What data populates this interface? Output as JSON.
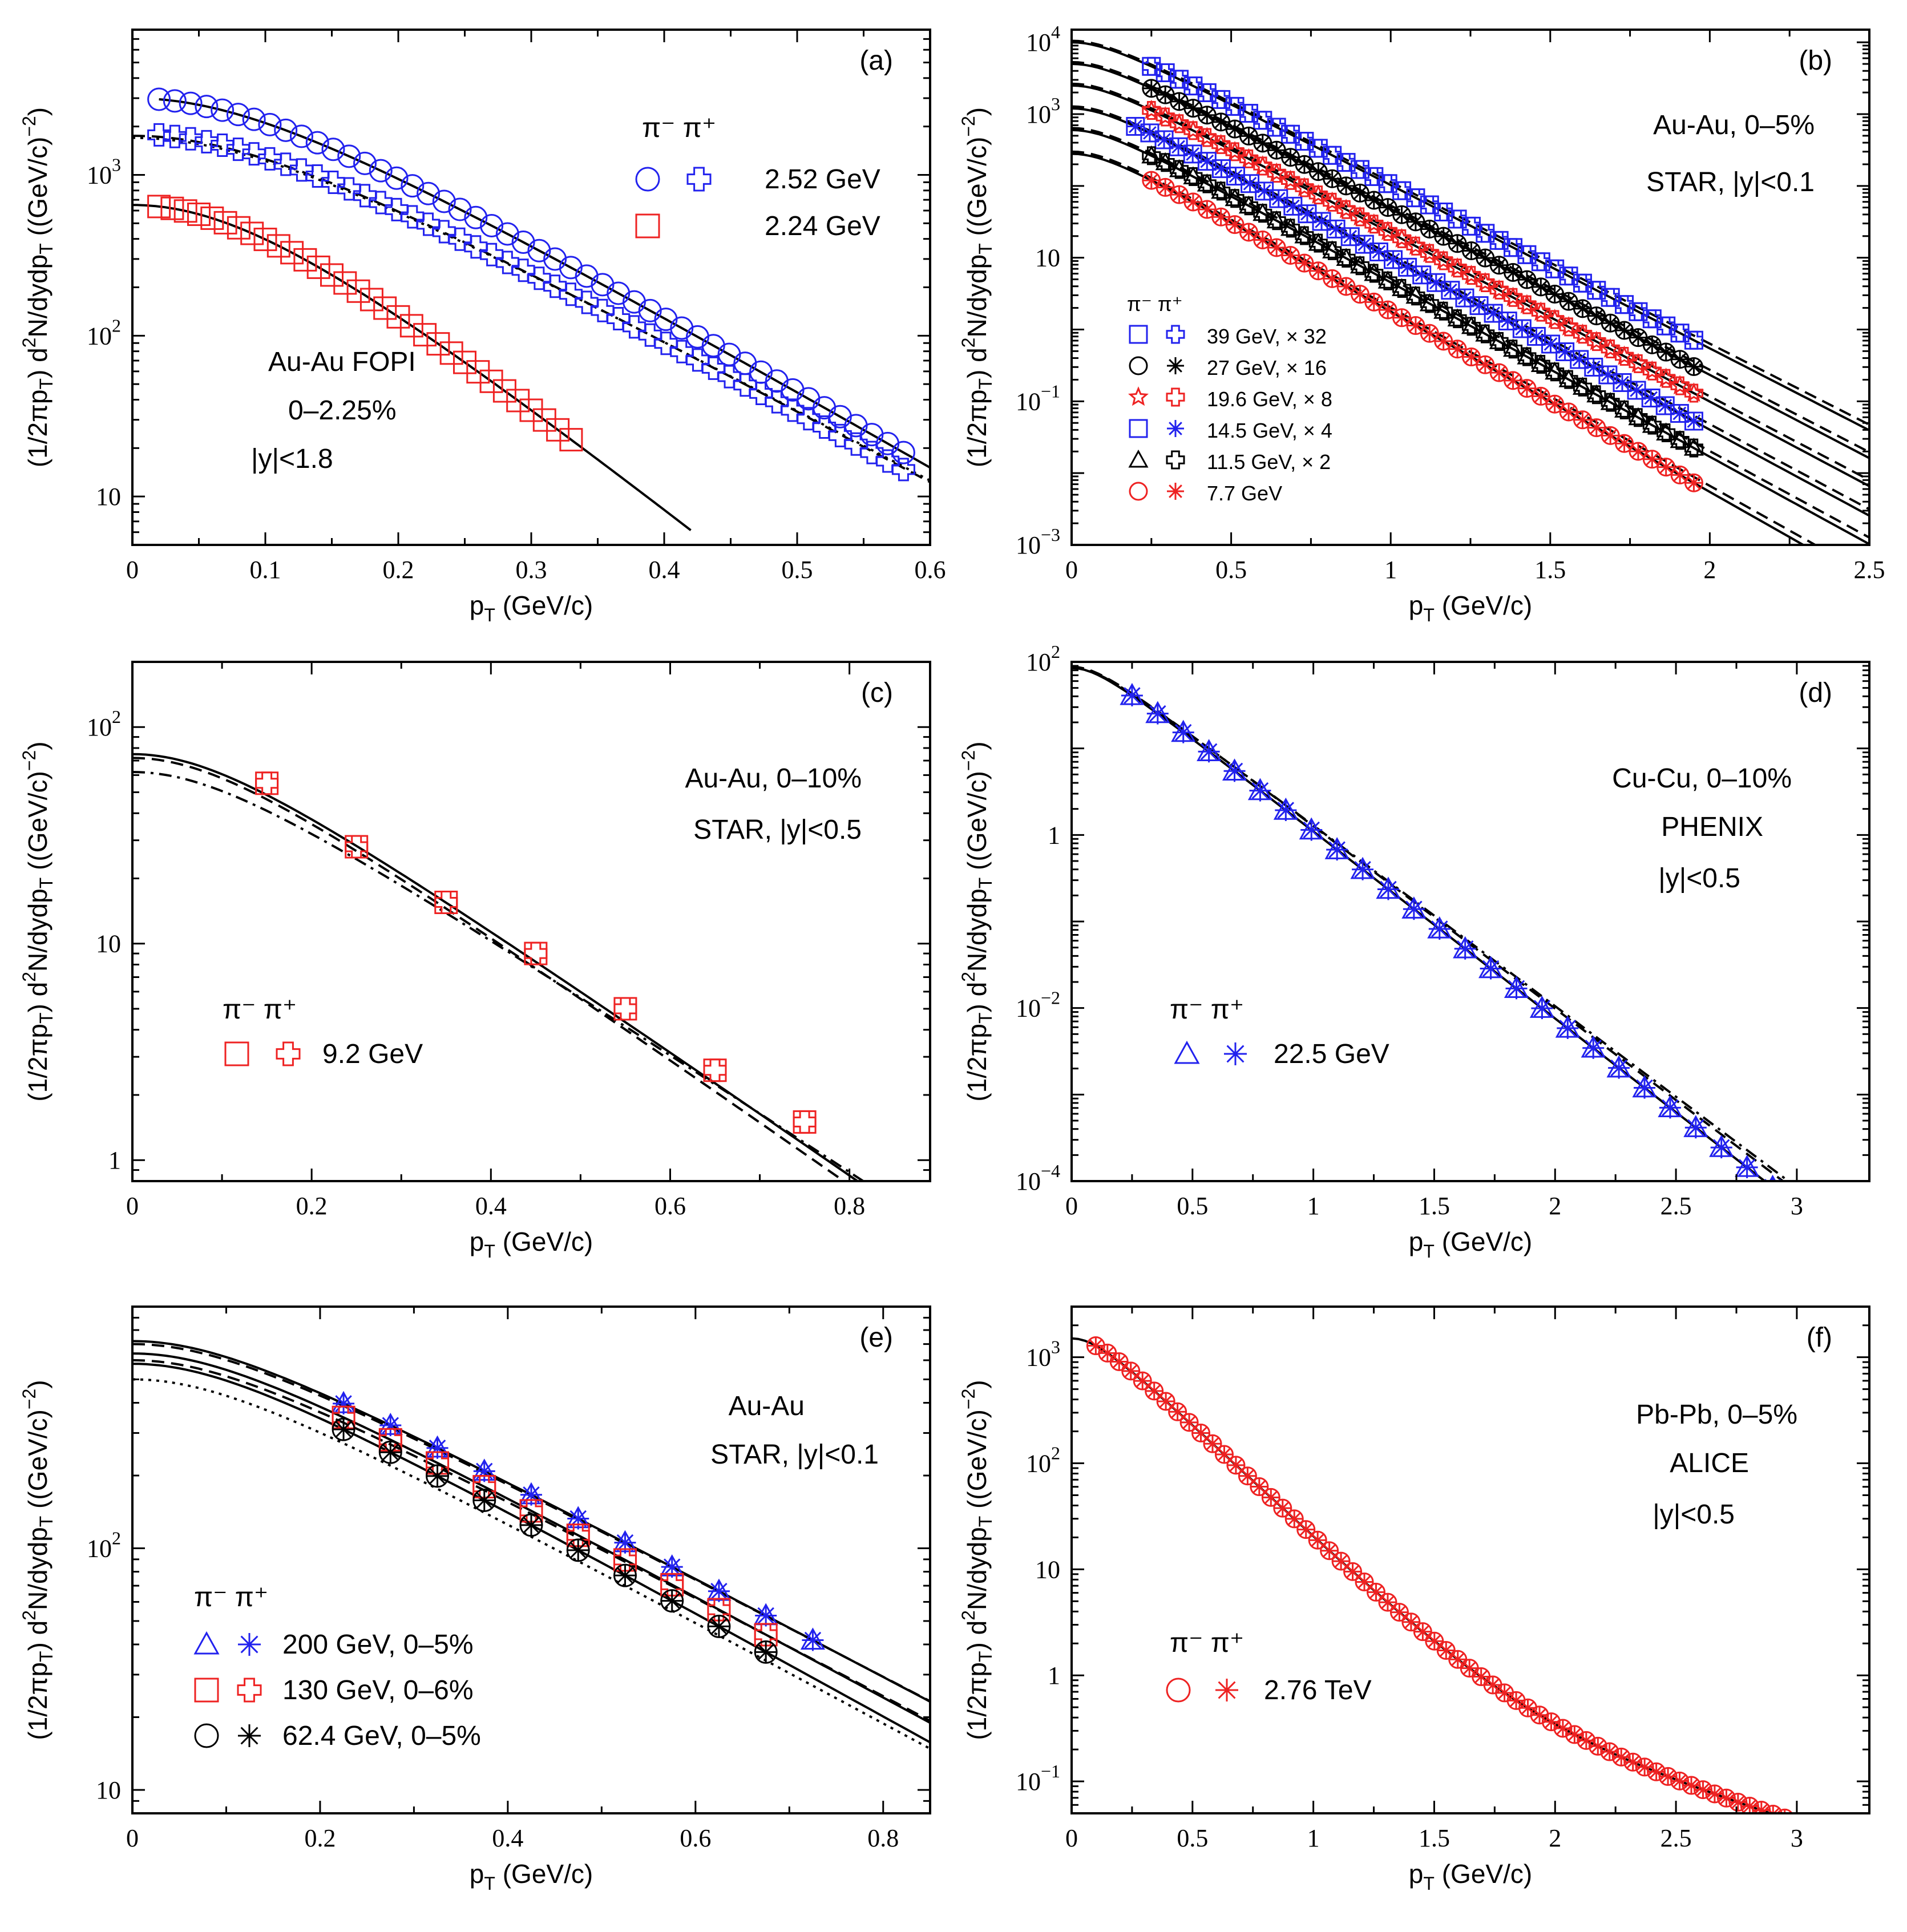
{
  "colors": {
    "blue": "#2222ee",
    "red": "#ee2222",
    "black": "#000000"
  },
  "chart_data": [
    {
      "id": "a",
      "type": "scatter",
      "panel_label": "(a)",
      "xlabel": "p_T (GeV/c)",
      "ylabel": "(1/2πp_T) d²N/dydp_T ((GeV/c)⁻²)",
      "xlim": [
        0,
        0.6
      ],
      "ylim": [
        5,
        8000
      ],
      "yscale": "log",
      "xticks": [
        0,
        0.1,
        0.2,
        0.3,
        0.4,
        0.5,
        0.6
      ],
      "xtick_labels": [
        "0",
        "0.1",
        "0.2",
        "0.3",
        "0.4",
        "0.5",
        "0.6"
      ],
      "yticks": [
        10,
        100,
        1000
      ],
      "ytick_labels": [
        "10",
        "10 2",
        "10 3"
      ],
      "annotations": [
        "Au-Au FOPI",
        "0–2.25%",
        "|y|<1.8"
      ],
      "legend_header": [
        "π⁻",
        "π⁺"
      ],
      "legend": [
        {
          "label": "2.52 GeV",
          "markers": [
            "circle",
            "cross"
          ],
          "color": "blue"
        },
        {
          "label": "2.24 GeV",
          "markers": [
            "square"
          ],
          "color": "red"
        }
      ],
      "series": [
        {
          "name": "2.52 GeV π⁻",
          "marker": "circle",
          "color": "blue",
          "model": {
            "A": 3000,
            "T": 0.09,
            "m": 0.14
          },
          "x_range": [
            0.02,
            0.58
          ],
          "n": 48,
          "scatter": 0.0
        },
        {
          "name": "2.52 GeV π⁺",
          "marker": "cross",
          "color": "blue",
          "model": {
            "A": 1800,
            "T": 0.095,
            "m": 0.14
          },
          "x_range": [
            0.02,
            0.58
          ],
          "n": 48,
          "scatter": 0.0
        },
        {
          "name": "2.24 GeV π⁻",
          "marker": "square",
          "color": "red",
          "model": {
            "A": 650,
            "T": 0.065,
            "m": 0.14
          },
          "x_range": [
            0.02,
            0.33
          ],
          "n": 32,
          "scatter": 0.0
        }
      ],
      "curves": [
        {
          "model": {
            "A": 3000,
            "T": 0.09,
            "m": 0.14
          },
          "style": "solid",
          "x_range": [
            0.02,
            0.6
          ]
        },
        {
          "model": {
            "A": 1750,
            "T": 0.096,
            "m": 0.14
          },
          "style": "dashed",
          "x_range": [
            0.0,
            0.6
          ]
        },
        {
          "model": {
            "A": 1700,
            "T": 0.097,
            "m": 0.14
          },
          "style": "dotted",
          "x_range": [
            0.0,
            0.6
          ]
        },
        {
          "model": {
            "A": 650,
            "T": 0.065,
            "m": 0.14
          },
          "style": "solid",
          "x_range": [
            0.0,
            0.42
          ]
        }
      ]
    },
    {
      "id": "b",
      "type": "scatter",
      "panel_label": "(b)",
      "xlabel": "p_T (GeV/c)",
      "ylabel": "(1/2πp_T) d²N/dydp_T ((GeV/c)⁻²)",
      "xlim": [
        0,
        2.5
      ],
      "ylim": [
        0.001,
        15000
      ],
      "yscale": "log",
      "xticks": [
        0,
        0.5,
        1,
        1.5,
        2,
        2.5
      ],
      "xtick_labels": [
        "0",
        "0.5",
        "1",
        "1.5",
        "2",
        "2.5"
      ],
      "yticks": [
        0.001,
        0.1,
        10,
        1000,
        10000
      ],
      "ytick_labels": [
        "10 −3",
        "10 −1",
        "10",
        "10 3",
        "10 4"
      ],
      "annotations": [
        "Au-Au, 0–5%",
        "STAR, |y|<0.1"
      ],
      "legend_header": [
        "π⁻",
        "π⁺"
      ],
      "legend": [
        {
          "label": "39 GeV, × 32",
          "markers": [
            "square",
            "cross"
          ],
          "color": "blue"
        },
        {
          "label": "27 GeV, × 16",
          "markers": [
            "circle",
            "star"
          ],
          "color": "black"
        },
        {
          "label": "19.6 GeV, × 8",
          "markers": [
            "star5",
            "cross"
          ],
          "color": "red"
        },
        {
          "label": "14.5 GeV, × 4",
          "markers": [
            "square",
            "star"
          ],
          "color": "blue"
        },
        {
          "label": "11.5 GeV, × 2",
          "markers": [
            "triangle",
            "cross"
          ],
          "color": "black"
        },
        {
          "label": "7.7 GeV",
          "markers": [
            "circle",
            "star"
          ],
          "color": "red"
        }
      ],
      "series": [
        {
          "name": "39 GeV",
          "marker": "squarecross",
          "color": "blue",
          "model": {
            "A": 10000,
            "T": 0.19,
            "m": 0.14
          },
          "x_range": [
            0.25,
            1.95
          ],
          "n": 40
        },
        {
          "name": "27 GeV",
          "marker": "circlestar",
          "color": "black",
          "model": {
            "A": 5000,
            "T": 0.187,
            "m": 0.14
          },
          "x_range": [
            0.25,
            1.95
          ],
          "n": 40
        },
        {
          "name": "19.6 GeV",
          "marker": "star5cross",
          "color": "red",
          "model": {
            "A": 2500,
            "T": 0.184,
            "m": 0.14
          },
          "x_range": [
            0.25,
            1.95
          ],
          "n": 40
        },
        {
          "name": "14.5 GeV",
          "marker": "squarestar",
          "color": "blue",
          "model": {
            "A": 1200,
            "T": 0.181,
            "m": 0.14
          },
          "x_range": [
            0.2,
            1.95
          ],
          "n": 40
        },
        {
          "name": "11.5 GeV",
          "marker": "trianglecross",
          "color": "black",
          "model": {
            "A": 600,
            "T": 0.178,
            "m": 0.14
          },
          "x_range": [
            0.25,
            1.95
          ],
          "n": 40
        },
        {
          "name": "7.7 GeV",
          "marker": "circlestar",
          "color": "red",
          "model": {
            "A": 280,
            "T": 0.172,
            "m": 0.14
          },
          "x_range": [
            0.25,
            1.95
          ],
          "n": 40
        }
      ],
      "curves": [
        {
          "model": {
            "A": 10000,
            "T": 0.19,
            "m": 0.14
          },
          "style": "solid",
          "x_range": [
            0,
            2.5
          ]
        },
        {
          "model": {
            "A": 10500,
            "T": 0.192,
            "m": 0.14
          },
          "style": "dashed",
          "x_range": [
            0,
            2.5
          ]
        },
        {
          "model": {
            "A": 5000,
            "T": 0.187,
            "m": 0.14
          },
          "style": "solid",
          "x_range": [
            0,
            2.5
          ]
        },
        {
          "model": {
            "A": 5300,
            "T": 0.189,
            "m": 0.14
          },
          "style": "dashed",
          "x_range": [
            0,
            2.5
          ]
        },
        {
          "model": {
            "A": 2500,
            "T": 0.184,
            "m": 0.14
          },
          "style": "solid",
          "x_range": [
            0,
            2.5
          ]
        },
        {
          "model": {
            "A": 2650,
            "T": 0.186,
            "m": 0.14
          },
          "style": "dashed",
          "x_range": [
            0,
            2.5
          ]
        },
        {
          "model": {
            "A": 1200,
            "T": 0.181,
            "m": 0.14
          },
          "style": "solid",
          "x_range": [
            0,
            2.5
          ]
        },
        {
          "model": {
            "A": 1280,
            "T": 0.183,
            "m": 0.14
          },
          "style": "dashed",
          "x_range": [
            0,
            2.5
          ]
        },
        {
          "model": {
            "A": 600,
            "T": 0.178,
            "m": 0.14
          },
          "style": "solid",
          "x_range": [
            0,
            2.5
          ]
        },
        {
          "model": {
            "A": 640,
            "T": 0.18,
            "m": 0.14
          },
          "style": "dashed",
          "x_range": [
            0,
            2.5
          ]
        },
        {
          "model": {
            "A": 280,
            "T": 0.172,
            "m": 0.14
          },
          "style": "solid",
          "x_range": [
            0,
            2.5
          ]
        },
        {
          "model": {
            "A": 300,
            "T": 0.174,
            "m": 0.14
          },
          "style": "dashed",
          "x_range": [
            0,
            2.5
          ]
        }
      ]
    },
    {
      "id": "c",
      "type": "scatter",
      "panel_label": "(c)",
      "xlabel": "p_T (GeV/c)",
      "ylabel": "(1/2πp_T) d²N/dydp_T ((GeV/c)⁻²)",
      "xlim": [
        0,
        0.89
      ],
      "ylim": [
        0.8,
        200
      ],
      "yscale": "log",
      "xticks": [
        0,
        0.2,
        0.4,
        0.6,
        0.8
      ],
      "xtick_labels": [
        "0",
        "0.2",
        "0.4",
        "0.6",
        "0.8"
      ],
      "yticks": [
        1,
        10,
        100
      ],
      "ytick_labels": [
        "1",
        "10",
        "10 2"
      ],
      "annotations": [
        "Au-Au, 0–10%",
        "STAR, |y|<0.5"
      ],
      "legend_header": [
        "π⁻",
        "π⁺"
      ],
      "legend": [
        {
          "label": "9.2 GeV",
          "markers": [
            "square",
            "cross"
          ],
          "color": "red"
        }
      ],
      "series": [
        {
          "name": "9.2 GeV",
          "marker": "squarecross",
          "color": "red",
          "points": [
            [
              0.15,
              55
            ],
            [
              0.25,
              28
            ],
            [
              0.35,
              15.5
            ],
            [
              0.45,
              9.0
            ],
            [
              0.55,
              5.0
            ],
            [
              0.65,
              2.6
            ],
            [
              0.75,
              1.5
            ]
          ]
        }
      ],
      "curves": [
        {
          "model": {
            "A": 75,
            "T": 0.15,
            "m": 0.14
          },
          "style": "solid",
          "x_range": [
            0,
            0.89
          ]
        },
        {
          "model": {
            "A": 72,
            "T": 0.148,
            "m": 0.14
          },
          "style": "dashed",
          "x_range": [
            0,
            0.89
          ]
        },
        {
          "model": {
            "A": 62,
            "T": 0.158,
            "m": 0.14
          },
          "style": "dashdot",
          "x_range": [
            0,
            0.89
          ]
        }
      ]
    },
    {
      "id": "d",
      "type": "scatter",
      "panel_label": "(d)",
      "xlabel": "p_T (GeV/c)",
      "ylabel": "(1/2πp_T) d²N/dydp_T ((GeV/c)⁻²)",
      "xlim": [
        0,
        3.3
      ],
      "ylim": [
        0.0001,
        100
      ],
      "yscale": "log",
      "xticks": [
        0,
        0.5,
        1,
        1.5,
        2,
        2.5,
        3
      ],
      "xtick_labels": [
        "0",
        "0.5",
        "1",
        "1.5",
        "2",
        "2.5",
        "3"
      ],
      "yticks": [
        0.0001,
        0.01,
        1,
        100
      ],
      "ytick_labels": [
        "10 −4",
        "10 −2",
        "1",
        "10 2"
      ],
      "annotations": [
        "Cu-Cu, 0–10%",
        "PHENIX",
        "|y|<0.5"
      ],
      "legend_header": [
        "π⁻",
        "π⁺"
      ],
      "legend": [
        {
          "label": "22.5 GeV",
          "markers": [
            "triangle",
            "star"
          ],
          "color": "blue"
        }
      ],
      "series": [
        {
          "name": "22.5 GeV",
          "marker": "trianglestar",
          "color": "blue",
          "model": {
            "A": 85,
            "T": 0.2,
            "m": 0.14
          },
          "x_range": [
            0.25,
            2.9
          ],
          "n": 26
        }
      ],
      "curves": [
        {
          "model": {
            "A": 85,
            "T": 0.2,
            "m": 0.14
          },
          "style": "solid",
          "x_range": [
            0,
            3.3
          ]
        },
        {
          "model": {
            "A": 88,
            "T": 0.205,
            "m": 0.14
          },
          "style": "dashed",
          "x_range": [
            0,
            3.3
          ]
        },
        {
          "model": {
            "A": 86,
            "T": 0.207,
            "m": 0.14
          },
          "style": "dashdot",
          "x_range": [
            0,
            3.3
          ]
        }
      ]
    },
    {
      "id": "e",
      "type": "scatter",
      "panel_label": "(e)",
      "xlabel": "p_T (GeV/c)",
      "ylabel": "(1/2πp_T) d²N/dydp_T ((GeV/c)⁻²)",
      "xlim": [
        0,
        0.85
      ],
      "ylim": [
        8,
        1000
      ],
      "yscale": "log",
      "xticks": [
        0,
        0.2,
        0.4,
        0.6,
        0.8
      ],
      "xtick_labels": [
        "0",
        "0.2",
        "0.4",
        "0.6",
        "0.8"
      ],
      "yticks": [
        10,
        100
      ],
      "ytick_labels": [
        "10",
        "10 2"
      ],
      "annotations": [
        "Au-Au",
        "STAR, |y|<0.1"
      ],
      "legend_header": [
        "π⁻",
        "π⁺"
      ],
      "legend": [
        {
          "label": "200 GeV, 0–5%",
          "markers": [
            "triangle",
            "star"
          ],
          "color": "blue"
        },
        {
          "label": "130 GeV, 0–6%",
          "markers": [
            "square",
            "cross"
          ],
          "color": "red"
        },
        {
          "label": "62.4 GeV, 0–5%",
          "markers": [
            "circle",
            "star"
          ],
          "color": "black"
        }
      ],
      "series": [
        {
          "name": "200 GeV",
          "marker": "trianglestar",
          "color": "blue",
          "model": {
            "A": 720,
            "T": 0.21,
            "m": 0.14
          },
          "x_range": [
            0.225,
            0.725
          ],
          "n": 11
        },
        {
          "name": "130 GeV",
          "marker": "squarecross",
          "color": "red",
          "model": {
            "A": 640,
            "T": 0.205,
            "m": 0.14
          },
          "x_range": [
            0.225,
            0.675
          ],
          "n": 10
        },
        {
          "name": "62.4 GeV",
          "marker": "circlestar",
          "color": "black",
          "model": {
            "A": 580,
            "T": 0.2,
            "m": 0.14
          },
          "x_range": [
            0.225,
            0.675
          ],
          "n": 10
        }
      ],
      "curves": [
        {
          "model": {
            "A": 720,
            "T": 0.21,
            "m": 0.14
          },
          "style": "solid",
          "x_range": [
            0,
            0.85
          ]
        },
        {
          "model": {
            "A": 700,
            "T": 0.212,
            "m": 0.14
          },
          "style": "dashed",
          "x_range": [
            0,
            0.85
          ]
        },
        {
          "model": {
            "A": 640,
            "T": 0.205,
            "m": 0.14
          },
          "style": "solid",
          "x_range": [
            0,
            0.85
          ]
        },
        {
          "model": {
            "A": 600,
            "T": 0.21,
            "m": 0.14
          },
          "style": "dashed",
          "x_range": [
            0,
            0.85
          ]
        },
        {
          "model": {
            "A": 580,
            "T": 0.2,
            "m": 0.14
          },
          "style": "solid",
          "x_range": [
            0,
            0.85
          ]
        },
        {
          "model": {
            "A": 500,
            "T": 0.205,
            "m": 0.14
          },
          "style": "dotted",
          "x_range": [
            0,
            0.85
          ]
        }
      ]
    },
    {
      "id": "f",
      "type": "scatter",
      "panel_label": "(f)",
      "xlabel": "p_T (GeV/c)",
      "ylabel": "(1/2πp_T) d²N/dydp_T ((GeV/c)⁻²)",
      "xlim": [
        0,
        3.3
      ],
      "ylim": [
        0.05,
        3000
      ],
      "yscale": "log",
      "xticks": [
        0,
        0.5,
        1,
        1.5,
        2,
        2.5,
        3
      ],
      "xtick_labels": [
        "0",
        "0.5",
        "1",
        "1.5",
        "2",
        "2.5",
        "3"
      ],
      "yticks": [
        0.1,
        1,
        10,
        100,
        1000
      ],
      "ytick_labels": [
        "10 −1",
        "1",
        "10",
        "10 2",
        "10 3"
      ],
      "annotations": [
        "Pb-Pb, 0–5%",
        "ALICE",
        "|y|<0.5"
      ],
      "legend_header": [
        "π⁻",
        "π⁺"
      ],
      "legend": [
        {
          "label": "2.76 TeV",
          "markers": [
            "circle",
            "star"
          ],
          "color": "red"
        }
      ],
      "series": [
        {
          "name": "2.76 TeV",
          "marker": "circlestar",
          "color": "red",
          "model": {
            "A": 1500,
            "T": 0.2,
            "m": 0.14,
            "tail": 0.6
          },
          "x_range": [
            0.1,
            2.95
          ],
          "n": 60
        }
      ],
      "curves": [
        {
          "model": {
            "A": 1500,
            "T": 0.2,
            "m": 0.14,
            "tail": 0.6
          },
          "style": "solid",
          "x_range": [
            0,
            3.3
          ]
        }
      ]
    }
  ]
}
